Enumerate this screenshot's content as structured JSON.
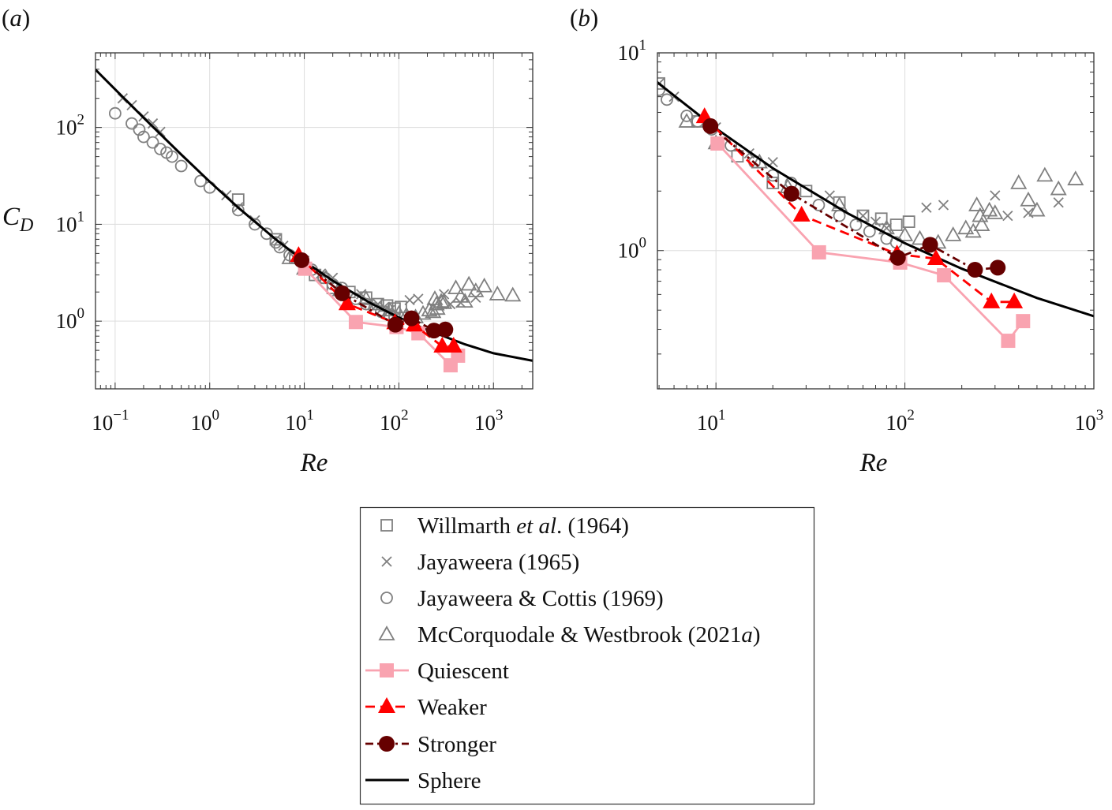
{
  "chart_data": {
    "type": "scatter",
    "x_scale": "log",
    "y_scale": "log",
    "grid": true,
    "legend_placement": "bottom-center",
    "colors": {
      "literature": "#808080",
      "quiescent": "#f9a3b0",
      "weaker": "#ff0000",
      "stronger": "#660000",
      "sphere": "#000000",
      "grid": "#dddddd"
    },
    "panels": [
      {
        "label_letter": "a",
        "xlabel": "Re",
        "ylabel": "C",
        "ylabel_sub": "D",
        "xlim": [
          0.062,
          2600
        ],
        "ylim": [
          0.2,
          590
        ],
        "xticks": [
          0.1,
          1,
          10,
          100,
          1000
        ],
        "yticks": [
          1,
          10,
          100
        ]
      },
      {
        "label_letter": "b",
        "xlabel": "Re",
        "ylabel": "",
        "ylabel_sub": "",
        "xlim": [
          4.9,
          1000
        ],
        "ylim": [
          0.2,
          10
        ],
        "xticks": [
          10,
          100,
          1000
        ],
        "yticks": [
          1,
          10
        ]
      }
    ],
    "series": [
      {
        "name": "Willmarth et al. (1964)",
        "marker": "square-open",
        "line": "none",
        "color": "#808080",
        "x": [
          2,
          5,
          8,
          13,
          20,
          30,
          45,
          60,
          75,
          90,
          105
        ],
        "y": [
          18,
          7,
          4.5,
          3,
          2.2,
          2.0,
          1.75,
          1.5,
          1.45,
          1.35,
          1.4
        ]
      },
      {
        "name": "Jayaweera (1965)",
        "marker": "cross",
        "line": "none",
        "color": "#808080",
        "x": [
          0.12,
          0.15,
          0.2,
          0.25,
          0.3,
          1.5,
          2,
          3,
          5,
          6,
          10,
          15,
          20,
          40,
          60,
          70,
          80,
          130,
          160,
          300,
          350,
          450,
          650
        ],
        "y": [
          200,
          170,
          130,
          110,
          90,
          20,
          15,
          11,
          7,
          6,
          4.2,
          3.1,
          2.8,
          1.9,
          1.5,
          1.4,
          1.3,
          1.65,
          1.7,
          1.9,
          1.5,
          1.55,
          1.75
        ]
      },
      {
        "name": "Jayaweera & Cottis (1969)",
        "marker": "circle-open",
        "line": "none",
        "color": "#808080",
        "x": [
          0.1,
          0.15,
          0.18,
          0.2,
          0.25,
          0.3,
          0.35,
          0.4,
          0.5,
          0.8,
          1,
          2,
          3,
          4,
          5,
          5.5,
          7,
          8,
          9.5,
          12,
          16,
          20,
          25,
          35,
          45,
          55,
          65,
          80,
          90
        ],
        "y": [
          140,
          110,
          95,
          80,
          70,
          60,
          55,
          50,
          40,
          28,
          24,
          14,
          10,
          8,
          6.5,
          5.8,
          4.8,
          4.5,
          4.1,
          3.4,
          2.8,
          2.4,
          2.2,
          1.7,
          1.5,
          1.35,
          1.25,
          1.15,
          1.1
        ]
      },
      {
        "name": "McCorquodale & Westbrook (2021a)",
        "marker": "triangle-open",
        "line": "none",
        "color": "#808080",
        "x": [
          7,
          10,
          17,
          24,
          45,
          80,
          100,
          120,
          150,
          180,
          210,
          230,
          240,
          250,
          255,
          280,
          300,
          400,
          450,
          500,
          550,
          650,
          800,
          1100,
          1600
        ],
        "y": [
          4.5,
          3.5,
          2.8,
          2.1,
          1.7,
          1.3,
          1.2,
          1.15,
          1.1,
          1.2,
          1.3,
          1.25,
          1.7,
          1.5,
          1.35,
          1.6,
          1.55,
          2.2,
          1.8,
          1.6,
          2.4,
          2.05,
          2.3,
          1.9,
          1.85
        ]
      },
      {
        "name": "Quiescent",
        "marker": "square-filled",
        "line": "solid",
        "color": "#f9a3b0",
        "x": [
          10.2,
          35.1,
          94.4,
          161,
          352,
          422
        ],
        "y": [
          3.48,
          0.98,
          0.87,
          0.75,
          0.35,
          0.44
        ]
      },
      {
        "name": "Weaker",
        "marker": "triangle-filled",
        "line": "dashed",
        "color": "#ff0000",
        "x": [
          8.7,
          28.4,
          90.8,
          146,
          287,
          379
        ],
        "y": [
          4.75,
          1.51,
          0.96,
          0.91,
          0.55,
          0.55
        ]
      },
      {
        "name": "Stronger",
        "marker": "circle-filled",
        "line": "dashdot",
        "color": "#660000",
        "x": [
          9.35,
          25.1,
          91.8,
          136,
          235,
          310
        ],
        "y": [
          4.26,
          1.94,
          0.92,
          1.07,
          0.8,
          0.82
        ]
      },
      {
        "name": "Sphere",
        "marker": "none",
        "line": "solid",
        "color": "#000000",
        "x": [
          0.062,
          0.1,
          0.2,
          0.5,
          1,
          2,
          5,
          10,
          20,
          50,
          100,
          200,
          500,
          1000,
          2600
        ],
        "y": [
          395.7,
          247.4,
          126.0,
          52.5,
          27.6,
          14.9,
          6.98,
          4.15,
          2.61,
          1.54,
          1.09,
          0.81,
          0.576,
          0.466,
          0.39
        ]
      }
    ]
  },
  "legend": {
    "entries": [
      {
        "p1": "Willmarth ",
        "p2": "et al",
        "p3": ". (1964)"
      },
      {
        "p1": "Jayaweera (1965)",
        "p2": "",
        "p3": ""
      },
      {
        "p1": "Jayaweera & Cottis (1969)",
        "p2": "",
        "p3": ""
      },
      {
        "p1": "McCorquodale & Westbrook (2021",
        "p2": "a",
        "p3": ")"
      },
      {
        "p1": "Quiescent",
        "p2": "",
        "p3": ""
      },
      {
        "p1": "Weaker",
        "p2": "",
        "p3": ""
      },
      {
        "p1": "Stronger",
        "p2": "",
        "p3": ""
      },
      {
        "p1": "Sphere",
        "p2": "",
        "p3": ""
      }
    ]
  }
}
